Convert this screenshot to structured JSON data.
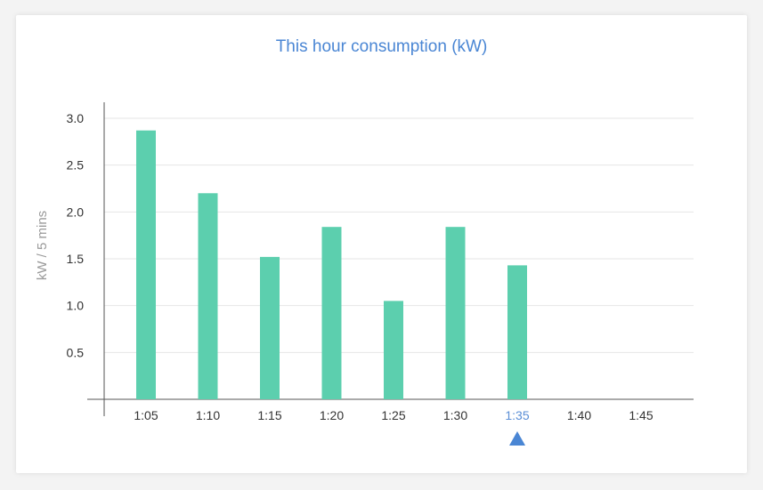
{
  "chart_data": {
    "type": "bar",
    "title": "This hour consumption (kW)",
    "xlabel": "",
    "ylabel": "kW / 5 mins",
    "categories": [
      "1:05",
      "1:10",
      "1:15",
      "1:20",
      "1:25",
      "1:30",
      "1:35",
      "1:40",
      "1:45"
    ],
    "values": [
      2.87,
      2.2,
      1.52,
      1.84,
      1.05,
      1.84,
      1.43,
      null,
      null
    ],
    "yticks": [
      "0.5",
      "1.0",
      "1.5",
      "2.0",
      "2.5",
      "3.0"
    ],
    "ylim": [
      0,
      3.0
    ],
    "grid": true,
    "current_category": "1:35",
    "colors": {
      "bar": "#5ccfae",
      "title": "#4a86d4",
      "current_label": "#5b8fd6",
      "marker": "#4a86d4",
      "grid": "#e6e6e6",
      "axis": "#555555",
      "tick_text": "#333333",
      "ylabel": "#9a9a9a"
    },
    "marker_icon": "triangle-up-icon"
  }
}
